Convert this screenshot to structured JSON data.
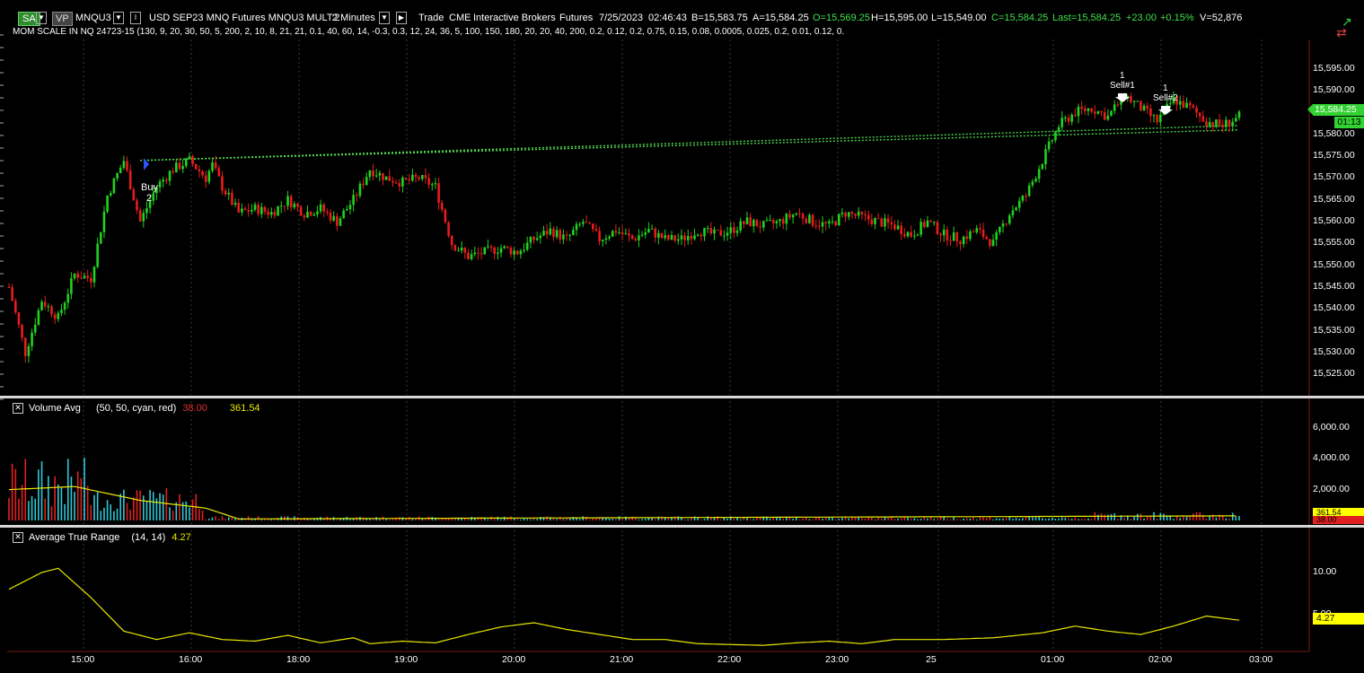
{
  "toolbar": {
    "sa_label": "SA",
    "vp_label": "VP",
    "symbol": "MNQU3",
    "description": "USD SEP23 MNQ Futures MNQU3 MULT:2",
    "interval": "2 Minutes",
    "r_label": "R",
    "data_type": "Trade",
    "exchange": "CME",
    "broker": "Interactive Brokers",
    "asset_class": "Futures",
    "date": "7/25/2023",
    "time": "02:46:43",
    "bid": "B=15,583.75",
    "ask": "A=15,584.25",
    "open": "O=15,569.25",
    "high": "H=15,595.00",
    "low": "L=15,549.00",
    "close": "C=15,584.25",
    "last": "Last=15,584.25",
    "change": "+23.00",
    "change_pct": "+0.15%",
    "volume": "V=52,876"
  },
  "strategy_line": "MOM SCALE IN NQ 24723-15 (130,  9,  20,  30,  50,  5,  200,  2,  10,  8,  21,  21,  0.1,  40,  60,  14,  -0.3,  0.3,  12,  24,  36,  5,  100,  150,  180,  20,  20,  40,  200,  0.2,  0.12,  0.2,  0.75,  0.15,  0.08,  0.0005,  0.025,  0.2,  0.01,  0.12,  0.",
  "price_axis": [
    "15,595.00",
    "15,590.00",
    "15,585.00",
    "15,580.00",
    "15,575.00",
    "15,570.00",
    "15,565.00",
    "15,560.00",
    "15,555.00",
    "15,550.00",
    "15,545.00",
    "15,540.00",
    "15,535.00",
    "15,530.00",
    "15,525.00"
  ],
  "last_price_tag": "15,584.25",
  "countdown_tag": "01:13",
  "trades": {
    "buy_label": "Buy",
    "buy_qty": "2",
    "sell1_qty": "1",
    "sell1_label": "Sell#1",
    "sell2_qty": "1",
    "sell2_label": "Sell#2"
  },
  "volume_panel": {
    "title": "Volume Avg",
    "params": "(50,  50,  cyan,  red)",
    "value_red": "38.00",
    "value_yellow": "361.54",
    "axis": [
      "6,000.00",
      "4,000.00",
      "2,000.00"
    ],
    "tag_avg": "361.54",
    "tag_vol": "38.00"
  },
  "atr_panel": {
    "title": "Average True Range",
    "params": "(14,  14)",
    "value": "4.27",
    "axis": [
      "10.00",
      "5.00"
    ],
    "tag": "4.27"
  },
  "time_axis": [
    "15:00",
    "16:00",
    "18:00",
    "19:00",
    "20:00",
    "21:00",
    "22:00",
    "23:00",
    "25",
    "01:00",
    "02:00",
    "03:00"
  ],
  "colors": {
    "up_candle": "#1fd21f",
    "down_candle": "#e81c1c",
    "volume_up": "#30c8d8",
    "volume_down": "#e02020",
    "avg_line": "#e8e800",
    "atr_line": "#e8e800",
    "ray_line": "#4fd64f",
    "tag_green": "#32d232",
    "tag_yellow": "#ffff00"
  },
  "chart_data": {
    "type": "candlestick",
    "price_ylim": [
      15522,
      15598
    ],
    "volume_ylim": [
      0,
      6400
    ],
    "atr_ylim": [
      1,
      13
    ],
    "close_path": [
      [
        0,
        15545
      ],
      [
        5,
        15530
      ],
      [
        10,
        15542
      ],
      [
        15,
        15538
      ],
      [
        20,
        15548
      ],
      [
        25,
        15547
      ],
      [
        30,
        15566
      ],
      [
        35,
        15574
      ],
      [
        40,
        15560
      ],
      [
        45,
        15568
      ],
      [
        50,
        15572
      ],
      [
        55,
        15574
      ],
      [
        60,
        15570
      ],
      [
        62,
        15573
      ],
      [
        65,
        15568
      ],
      [
        70,
        15562
      ],
      [
        75,
        15563
      ],
      [
        80,
        15562
      ],
      [
        85,
        15565
      ],
      [
        90,
        15562
      ],
      [
        95,
        15563
      ],
      [
        100,
        15560
      ],
      [
        105,
        15565
      ],
      [
        110,
        15572
      ],
      [
        115,
        15570
      ],
      [
        120,
        15569
      ],
      [
        125,
        15570
      ],
      [
        130,
        15568
      ],
      [
        135,
        15555
      ],
      [
        140,
        15552
      ],
      [
        145,
        15553
      ],
      [
        150,
        15554
      ],
      [
        155,
        15553
      ],
      [
        160,
        15556
      ],
      [
        165,
        15558
      ],
      [
        170,
        15556
      ],
      [
        175,
        15560
      ],
      [
        180,
        15556
      ],
      [
        185,
        15558
      ],
      [
        190,
        15556
      ],
      [
        195,
        15558
      ],
      [
        200,
        15556
      ],
      [
        205,
        15556
      ],
      [
        210,
        15558
      ],
      [
        215,
        15557
      ],
      [
        220,
        15558
      ],
      [
        225,
        15560
      ],
      [
        230,
        15559
      ],
      [
        235,
        15560
      ],
      [
        240,
        15562
      ],
      [
        245,
        15560
      ],
      [
        250,
        15559
      ],
      [
        255,
        15562
      ],
      [
        260,
        15561
      ],
      [
        265,
        15560
      ],
      [
        270,
        15559
      ],
      [
        275,
        15557
      ],
      [
        280,
        15560
      ],
      [
        285,
        15557
      ],
      [
        290,
        15556
      ],
      [
        295,
        15558
      ],
      [
        300,
        15555
      ],
      [
        305,
        15562
      ],
      [
        310,
        15566
      ],
      [
        315,
        15574
      ],
      [
        320,
        15582
      ],
      [
        325,
        15585
      ],
      [
        330,
        15586
      ],
      [
        335,
        15584
      ],
      [
        340,
        15589
      ],
      [
        345,
        15586
      ],
      [
        350,
        15583
      ],
      [
        355,
        15588
      ],
      [
        360,
        15586
      ],
      [
        365,
        15583
      ],
      [
        370,
        15582
      ],
      [
        375,
        15584
      ]
    ],
    "bars_total": 376,
    "ray_lines": [
      {
        "from": [
          40,
          15574
        ],
        "to": [
          350,
          15582
        ]
      },
      {
        "from": [
          40,
          15574
        ],
        "to": [
          350,
          15581
        ]
      }
    ],
    "volume_avg_path": [
      [
        0,
        2000
      ],
      [
        20,
        2200
      ],
      [
        40,
        1300
      ],
      [
        60,
        800
      ],
      [
        70,
        100
      ],
      [
        376,
        300
      ]
    ],
    "atr_path": [
      [
        0,
        8
      ],
      [
        10,
        10
      ],
      [
        15,
        10.5
      ],
      [
        25,
        7
      ],
      [
        35,
        3
      ],
      [
        45,
        2
      ],
      [
        55,
        2.8
      ],
      [
        65,
        2
      ],
      [
        75,
        1.8
      ],
      [
        85,
        2.5
      ],
      [
        95,
        1.6
      ],
      [
        105,
        2.2
      ],
      [
        110,
        1.5
      ],
      [
        120,
        1.8
      ],
      [
        130,
        1.6
      ],
      [
        140,
        2.6
      ],
      [
        150,
        3.5
      ],
      [
        160,
        4
      ],
      [
        170,
        3.2
      ],
      [
        180,
        2.6
      ],
      [
        190,
        2
      ],
      [
        200,
        2
      ],
      [
        210,
        1.5
      ],
      [
        220,
        1.4
      ],
      [
        230,
        1.3
      ],
      [
        240,
        1.6
      ],
      [
        250,
        1.8
      ],
      [
        260,
        1.5
      ],
      [
        270,
        2
      ],
      [
        285,
        2
      ],
      [
        300,
        2.2
      ],
      [
        315,
        2.8
      ],
      [
        325,
        3.6
      ],
      [
        335,
        3
      ],
      [
        345,
        2.6
      ],
      [
        355,
        3.6
      ],
      [
        365,
        4.8
      ],
      [
        375,
        4.3
      ]
    ]
  }
}
